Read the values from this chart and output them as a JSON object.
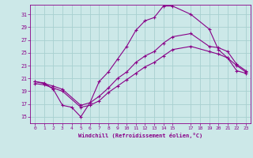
{
  "xlabel": "Windchill (Refroidissement éolien,°C)",
  "bg_color": "#cce8e8",
  "grid_color": "#a8d0d0",
  "line_color": "#880088",
  "xlim": [
    -0.5,
    23.5
  ],
  "ylim": [
    14.0,
    32.5
  ],
  "yticks": [
    15,
    17,
    19,
    21,
    23,
    25,
    27,
    29,
    31
  ],
  "xticks": [
    0,
    1,
    2,
    3,
    4,
    5,
    6,
    7,
    8,
    9,
    10,
    11,
    12,
    13,
    14,
    15,
    17,
    18,
    19,
    20,
    21,
    22,
    23
  ],
  "line1_x": [
    0,
    1,
    2,
    3,
    4,
    5,
    6,
    7,
    8,
    9,
    10,
    11,
    12,
    13,
    14,
    15,
    17,
    19,
    20,
    21,
    22,
    23
  ],
  "line1_y": [
    20.5,
    20.3,
    19.3,
    16.8,
    16.5,
    15.0,
    17.2,
    20.5,
    22.0,
    24.0,
    26.0,
    28.5,
    30.0,
    30.5,
    32.3,
    32.3,
    31.0,
    28.7,
    25.5,
    24.2,
    23.0,
    22.0
  ],
  "line2_x": [
    0,
    1,
    2,
    3,
    5,
    6,
    7,
    8,
    9,
    10,
    11,
    12,
    13,
    14,
    15,
    17,
    19,
    20,
    21,
    22,
    23
  ],
  "line2_y": [
    20.5,
    20.2,
    19.8,
    19.3,
    16.8,
    17.2,
    18.2,
    19.5,
    21.0,
    22.0,
    23.5,
    24.5,
    25.2,
    26.5,
    27.5,
    28.0,
    26.0,
    25.8,
    25.2,
    23.2,
    22.2
  ],
  "line3_x": [
    0,
    1,
    2,
    3,
    5,
    6,
    7,
    8,
    9,
    10,
    11,
    12,
    13,
    14,
    15,
    17,
    19,
    20,
    21,
    22,
    23
  ],
  "line3_y": [
    20.2,
    20.0,
    19.5,
    19.0,
    16.5,
    16.8,
    17.5,
    18.8,
    19.8,
    20.8,
    21.8,
    22.8,
    23.5,
    24.5,
    25.5,
    26.0,
    25.2,
    24.8,
    24.2,
    22.2,
    21.8
  ]
}
